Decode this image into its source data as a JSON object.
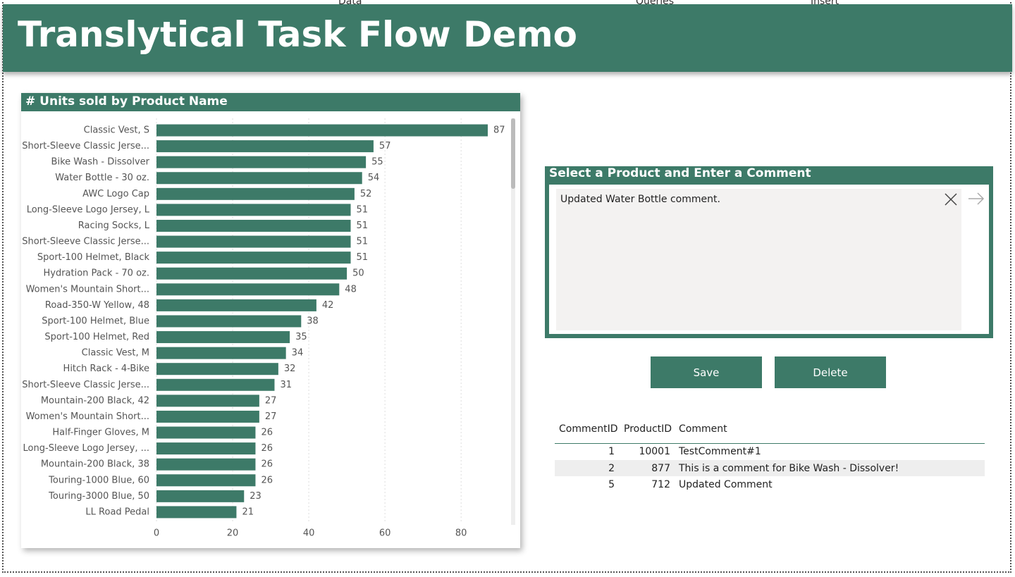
{
  "ribbon": [
    "Data",
    "Queries",
    "Insert"
  ],
  "header": {
    "title": "Translytical Task Flow Demo"
  },
  "chart_data": {
    "type": "hbar",
    "title": "# Units sold by Product Name",
    "categories": [
      "Classic Vest, S",
      "Short-Sleeve Classic Jerse...",
      "Bike Wash - Dissolver",
      "Water Bottle - 30 oz.",
      "AWC Logo Cap",
      "Long-Sleeve Logo Jersey, L",
      "Racing Socks, L",
      "Short-Sleeve Classic Jerse...",
      "Sport-100 Helmet, Black",
      "Hydration Pack - 70 oz.",
      "Women's Mountain Short...",
      "Road-350-W Yellow, 48",
      "Sport-100 Helmet, Blue",
      "Sport-100 Helmet, Red",
      "Classic Vest, M",
      "Hitch Rack - 4-Bike",
      "Short-Sleeve Classic Jerse...",
      "Mountain-200 Black, 42",
      "Women's Mountain Short...",
      "Half-Finger Gloves, M",
      "Long-Sleeve Logo Jersey, ...",
      "Mountain-200 Black, 38",
      "Touring-1000 Blue, 60",
      "Touring-3000 Blue, 50",
      "LL Road Pedal"
    ],
    "values": [
      87,
      57,
      55,
      54,
      52,
      51,
      51,
      51,
      51,
      50,
      48,
      42,
      38,
      35,
      34,
      32,
      31,
      27,
      27,
      26,
      26,
      26,
      26,
      23,
      21
    ],
    "color": "#3d7a68",
    "xlim": [
      0,
      92
    ],
    "xticks": [
      0,
      20,
      40,
      60,
      80
    ],
    "grid": true
  },
  "comment_panel": {
    "title": "Select a Product and Enter a Comment",
    "text": "Updated Water Bottle comment."
  },
  "buttons": [
    "Save",
    "Delete"
  ],
  "table": {
    "columns": [
      "CommentID",
      "ProductID",
      "Comment"
    ],
    "rows": [
      [
        "1",
        "10001",
        "TestComment#1"
      ],
      [
        "2",
        "877",
        "This is a comment for Bike Wash - Dissolver!"
      ],
      [
        "5",
        "712",
        "Updated Comment"
      ]
    ]
  }
}
